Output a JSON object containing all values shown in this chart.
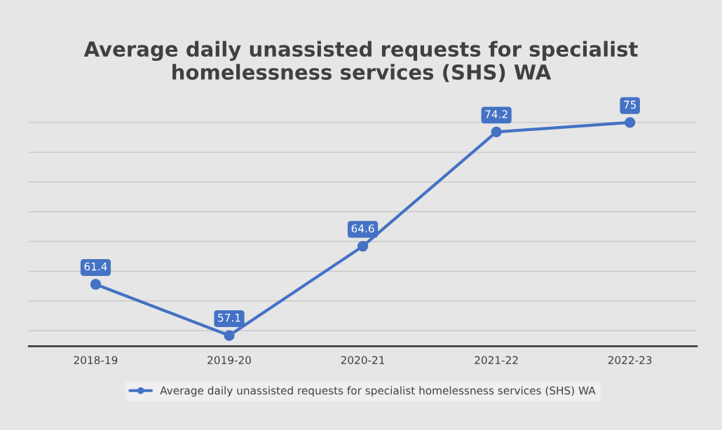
{
  "chart_data": {
    "type": "line",
    "title": "Average daily unassisted requests for specialist homelessness services (SHS) WA",
    "categories": [
      "2018-19",
      "2019-20",
      "2020-21",
      "2021-22",
      "2022-23"
    ],
    "series": [
      {
        "name": "Average daily unassisted requests for specialist homelessness services (SHS) WA",
        "color": "#4472c4",
        "values": [
          61.4,
          57.1,
          64.6,
          74.2,
          75
        ]
      }
    ],
    "tick_labels": "x",
    "grid": "y",
    "legend": "bottom",
    "marker": "circle",
    "line_style": "solid",
    "data_labels": true
  }
}
